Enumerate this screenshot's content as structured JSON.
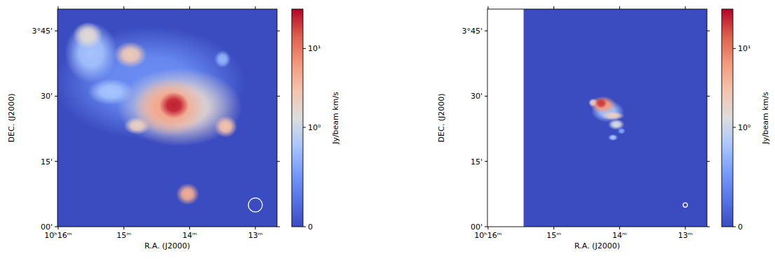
{
  "chart_data": [
    {
      "type": "heatmap",
      "x_label": "R.A. (J2000)",
      "y_label": "DEC. (J2000)",
      "xlim": [
        16.01,
        12.67
      ],
      "ylim": [
        0,
        50
      ],
      "xticks": [
        {
          "value": 16,
          "label": "10ʰ16ᵐ"
        },
        {
          "value": 15,
          "label": "15ᵐ"
        },
        {
          "value": 14,
          "label": "14ᵐ"
        },
        {
          "value": 13,
          "label": "13ᵐ"
        }
      ],
      "yticks": [
        {
          "value": 0,
          "label": "00'"
        },
        {
          "value": 15,
          "label": "15'"
        },
        {
          "value": 30,
          "label": "30'"
        },
        {
          "value": 45,
          "label": "3°45'"
        }
      ],
      "colorbar": {
        "label": "Jy/beam km/s",
        "range": [
          0,
          31.6
        ],
        "scale": "symlog",
        "linthresh": 1,
        "linscale": 1.26,
        "ticks": [
          0,
          {
            "value": 1,
            "label": "10⁰"
          },
          {
            "value": 10,
            "label": "10¹"
          }
        ]
      },
      "beam": {
        "ra": 13,
        "dec": 5,
        "diameter": 3.2
      },
      "blobs": [
        {
          "ra": 14.6,
          "dec": 33,
          "width": 2.9,
          "height": 26,
          "value": 0.45
        },
        {
          "ra": 15.5,
          "dec": 40,
          "width": 0.8,
          "height": 14,
          "value": 0.8
        },
        {
          "ra": 15.55,
          "dec": 44,
          "width": 0.45,
          "height": 6,
          "value": 1.5
        },
        {
          "ra": 15.2,
          "dec": 31,
          "width": 0.7,
          "height": 6,
          "value": 0.8
        },
        {
          "ra": 14.9,
          "dec": 39.5,
          "width": 0.5,
          "height": 6,
          "value": 2.5
        },
        {
          "ra": 13.5,
          "dec": 38.5,
          "width": 0.25,
          "height": 4,
          "value": 0.7
        },
        {
          "ra": 14.15,
          "dec": 27.5,
          "width": 1.9,
          "height": 18,
          "value": 1.6
        },
        {
          "ra": 14.8,
          "dec": 23.2,
          "width": 0.4,
          "height": 4,
          "value": 2
        },
        {
          "ra": 13.45,
          "dec": 23,
          "width": 0.35,
          "height": 5,
          "value": 3
        },
        {
          "ra": 14.3,
          "dec": 27.5,
          "width": 1.1,
          "height": 13,
          "value": 5
        },
        {
          "ra": 14.24,
          "dec": 27.9,
          "width": 0.45,
          "height": 6,
          "value": 25
        },
        {
          "ra": 14.03,
          "dec": 7.5,
          "width": 0.35,
          "height": 5,
          "value": 4.5
        }
      ]
    },
    {
      "type": "heatmap",
      "x_label": "R.A. (J2000)",
      "y_label": "DEC. (J2000)",
      "xlim": [
        16.01,
        12.67
      ],
      "ylim": [
        0,
        50
      ],
      "coverage_xlim": [
        15.46,
        12.67
      ],
      "xticks": [
        {
          "value": 16,
          "label": "10ʰ16ᵐ"
        },
        {
          "value": 15,
          "label": "15ᵐ"
        },
        {
          "value": 14,
          "label": "14ᵐ"
        },
        {
          "value": 13,
          "label": "13ᵐ"
        }
      ],
      "yticks": [
        {
          "value": 0,
          "label": "00'"
        },
        {
          "value": 15,
          "label": "15'"
        },
        {
          "value": 30,
          "label": "30'"
        },
        {
          "value": 45,
          "label": "3°45'"
        }
      ],
      "colorbar": {
        "label": "Jy/beam km/s",
        "range": [
          0,
          31.6
        ],
        "scale": "symlog",
        "linthresh": 1,
        "linscale": 1.26,
        "ticks": [
          0,
          {
            "value": 1,
            "label": "10⁰"
          },
          {
            "value": 10,
            "label": "10¹"
          }
        ]
      },
      "beam": {
        "ra": 13,
        "dec": 5,
        "diameter": 1.0
      },
      "blobs": [
        {
          "ra": 14.18,
          "dec": 26.5,
          "width": 0.5,
          "height": 5,
          "value": 0.8
        },
        {
          "ra": 14.05,
          "dec": 23.5,
          "width": 0.25,
          "height": 2.5,
          "value": 1.2
        },
        {
          "ra": 14.1,
          "dec": 20.5,
          "width": 0.15,
          "height": 1.5,
          "value": 0.8
        },
        {
          "ra": 13.97,
          "dec": 22,
          "width": 0.12,
          "height": 1.5,
          "value": 0.6
        },
        {
          "ra": 14.4,
          "dec": 28.5,
          "width": 0.15,
          "height": 2,
          "value": 1.5
        },
        {
          "ra": 14.1,
          "dec": 25.5,
          "width": 0.35,
          "height": 2,
          "value": 2
        },
        {
          "ra": 14.25,
          "dec": 28,
          "width": 0.4,
          "height": 4,
          "value": 6
        },
        {
          "ra": 14.28,
          "dec": 28.4,
          "width": 0.18,
          "height": 2.5,
          "value": 20
        }
      ]
    }
  ]
}
